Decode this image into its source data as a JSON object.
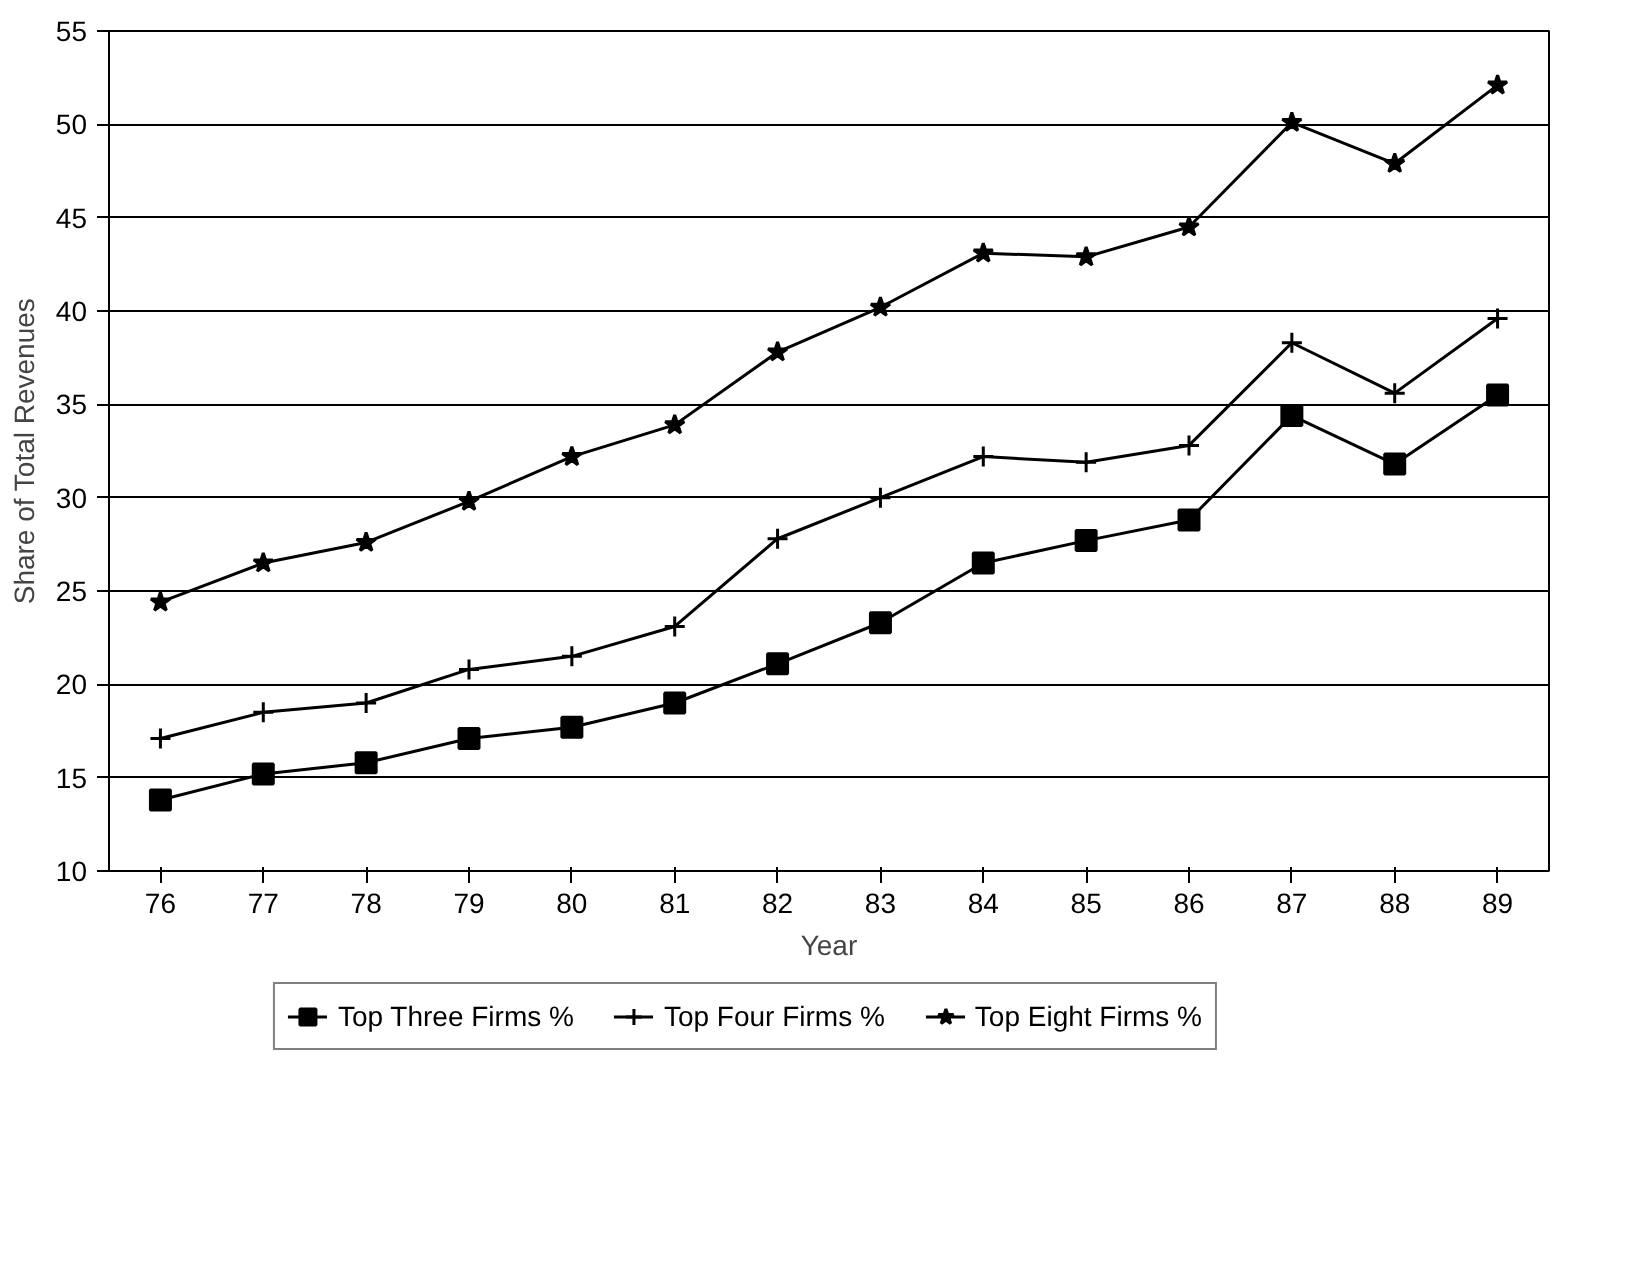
{
  "chart_data": {
    "type": "line",
    "xlabel": "Year",
    "ylabel": "Share of Total Revenues",
    "categories": [
      "76",
      "77",
      "78",
      "79",
      "80",
      "81",
      "82",
      "83",
      "84",
      "85",
      "86",
      "87",
      "88",
      "89"
    ],
    "ylim": [
      10,
      55
    ],
    "yticks": [
      10,
      15,
      20,
      25,
      30,
      35,
      40,
      45,
      50,
      55
    ],
    "grid": "y",
    "legend": "bottom",
    "line_style": "solid",
    "series": [
      {
        "name": "Top Three Firms %",
        "color": "#000000",
        "marker": "square",
        "values": [
          13.8,
          15.2,
          15.8,
          17.1,
          17.7,
          19.0,
          21.1,
          23.3,
          26.5,
          27.7,
          28.8,
          34.4,
          31.8,
          35.5
        ]
      },
      {
        "name": "Top Four Firms %",
        "color": "#000000",
        "marker": "cross",
        "values": [
          17.1,
          18.5,
          19.0,
          20.8,
          21.5,
          23.1,
          27.8,
          30.0,
          32.2,
          31.9,
          32.8,
          38.3,
          35.6,
          39.6
        ]
      },
      {
        "name": "Top Eight Firms %",
        "color": "#000000",
        "marker": "star",
        "values": [
          24.4,
          26.5,
          27.6,
          29.8,
          32.2,
          33.9,
          37.8,
          40.2,
          43.1,
          42.9,
          44.5,
          50.1,
          47.9,
          52.1
        ]
      }
    ]
  }
}
